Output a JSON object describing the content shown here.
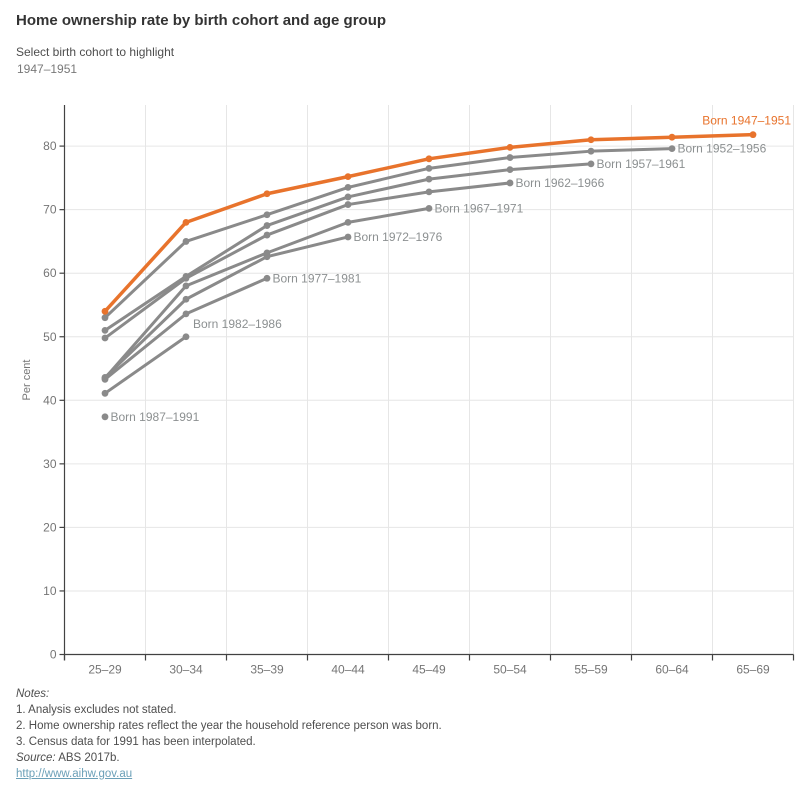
{
  "title": "Home ownership rate by birth cohort and age group",
  "selector": {
    "label": "Select birth cohort to highlight",
    "value": "1947–1951"
  },
  "colors": {
    "highlight": "#E8732C",
    "series_gray": "#8A8A8A",
    "series_label_gray": "#8C9091",
    "axis_text": "#757575",
    "gridline": "#E6E6E6",
    "axis_line": "#424242",
    "link": "#6BA0B8"
  },
  "chart_data": {
    "type": "line",
    "title": "Home ownership rate by birth cohort and age group",
    "xlabel": "",
    "ylabel": "Per cent",
    "ylim": [
      0,
      86
    ],
    "yticks": [
      0,
      10,
      20,
      30,
      40,
      50,
      60,
      70,
      80
    ],
    "grid": true,
    "legend_position": "inline-labels",
    "categories": [
      "25–29",
      "30–34",
      "35–39",
      "40–44",
      "45–49",
      "50–54",
      "55–59",
      "60–64",
      "65–69"
    ],
    "highlighted_series": "Born 1947–1951",
    "series": [
      {
        "label": "Born 1987–1991",
        "highlight": false,
        "label_pos": "right",
        "values": [
          37.4
        ]
      },
      {
        "label": "Born 1982–1986",
        "highlight": false,
        "label_pos": "above",
        "values": [
          41.1,
          50
        ]
      },
      {
        "label": "Born 1977–1981",
        "highlight": false,
        "label_pos": "right",
        "values": [
          43.3,
          53.6,
          59.2
        ]
      },
      {
        "label": "Born 1972–1976",
        "highlight": false,
        "label_pos": "right",
        "values": [
          43.6,
          55.9,
          62.6,
          65.7
        ]
      },
      {
        "label": "Born 1967–1971",
        "highlight": false,
        "label_pos": "right",
        "values": [
          43.5,
          58,
          63.2,
          68,
          70.2
        ]
      },
      {
        "label": "Born 1962–1966",
        "highlight": false,
        "label_pos": "right",
        "values": [
          49.8,
          59.2,
          66,
          70.8,
          72.8,
          74.2
        ]
      },
      {
        "label": "Born 1957–1961",
        "highlight": false,
        "label_pos": "right",
        "values": [
          51,
          59.5,
          67.5,
          72,
          74.8,
          76.3,
          77.2
        ]
      },
      {
        "label": "Born 1952–1956",
        "highlight": false,
        "label_pos": "right",
        "values": [
          53,
          65,
          69.2,
          73.5,
          76.5,
          78.2,
          79.2,
          79.6
        ]
      },
      {
        "label": "Born 1947–1951",
        "highlight": true,
        "label_pos": "end",
        "values": [
          54,
          68,
          72.5,
          75.2,
          78,
          79.8,
          81,
          81.4,
          81.8
        ]
      }
    ]
  },
  "footer": {
    "notes_label": "Notes:",
    "notes": [
      "1. Analysis excludes not stated.",
      "2. Home ownership rates reflect the year the household reference person was born.",
      "3. Census data for 1991 has been interpolated."
    ],
    "source_label": "Source:",
    "source": "ABS 2017b.",
    "link": "http://www.aihw.gov.au"
  }
}
